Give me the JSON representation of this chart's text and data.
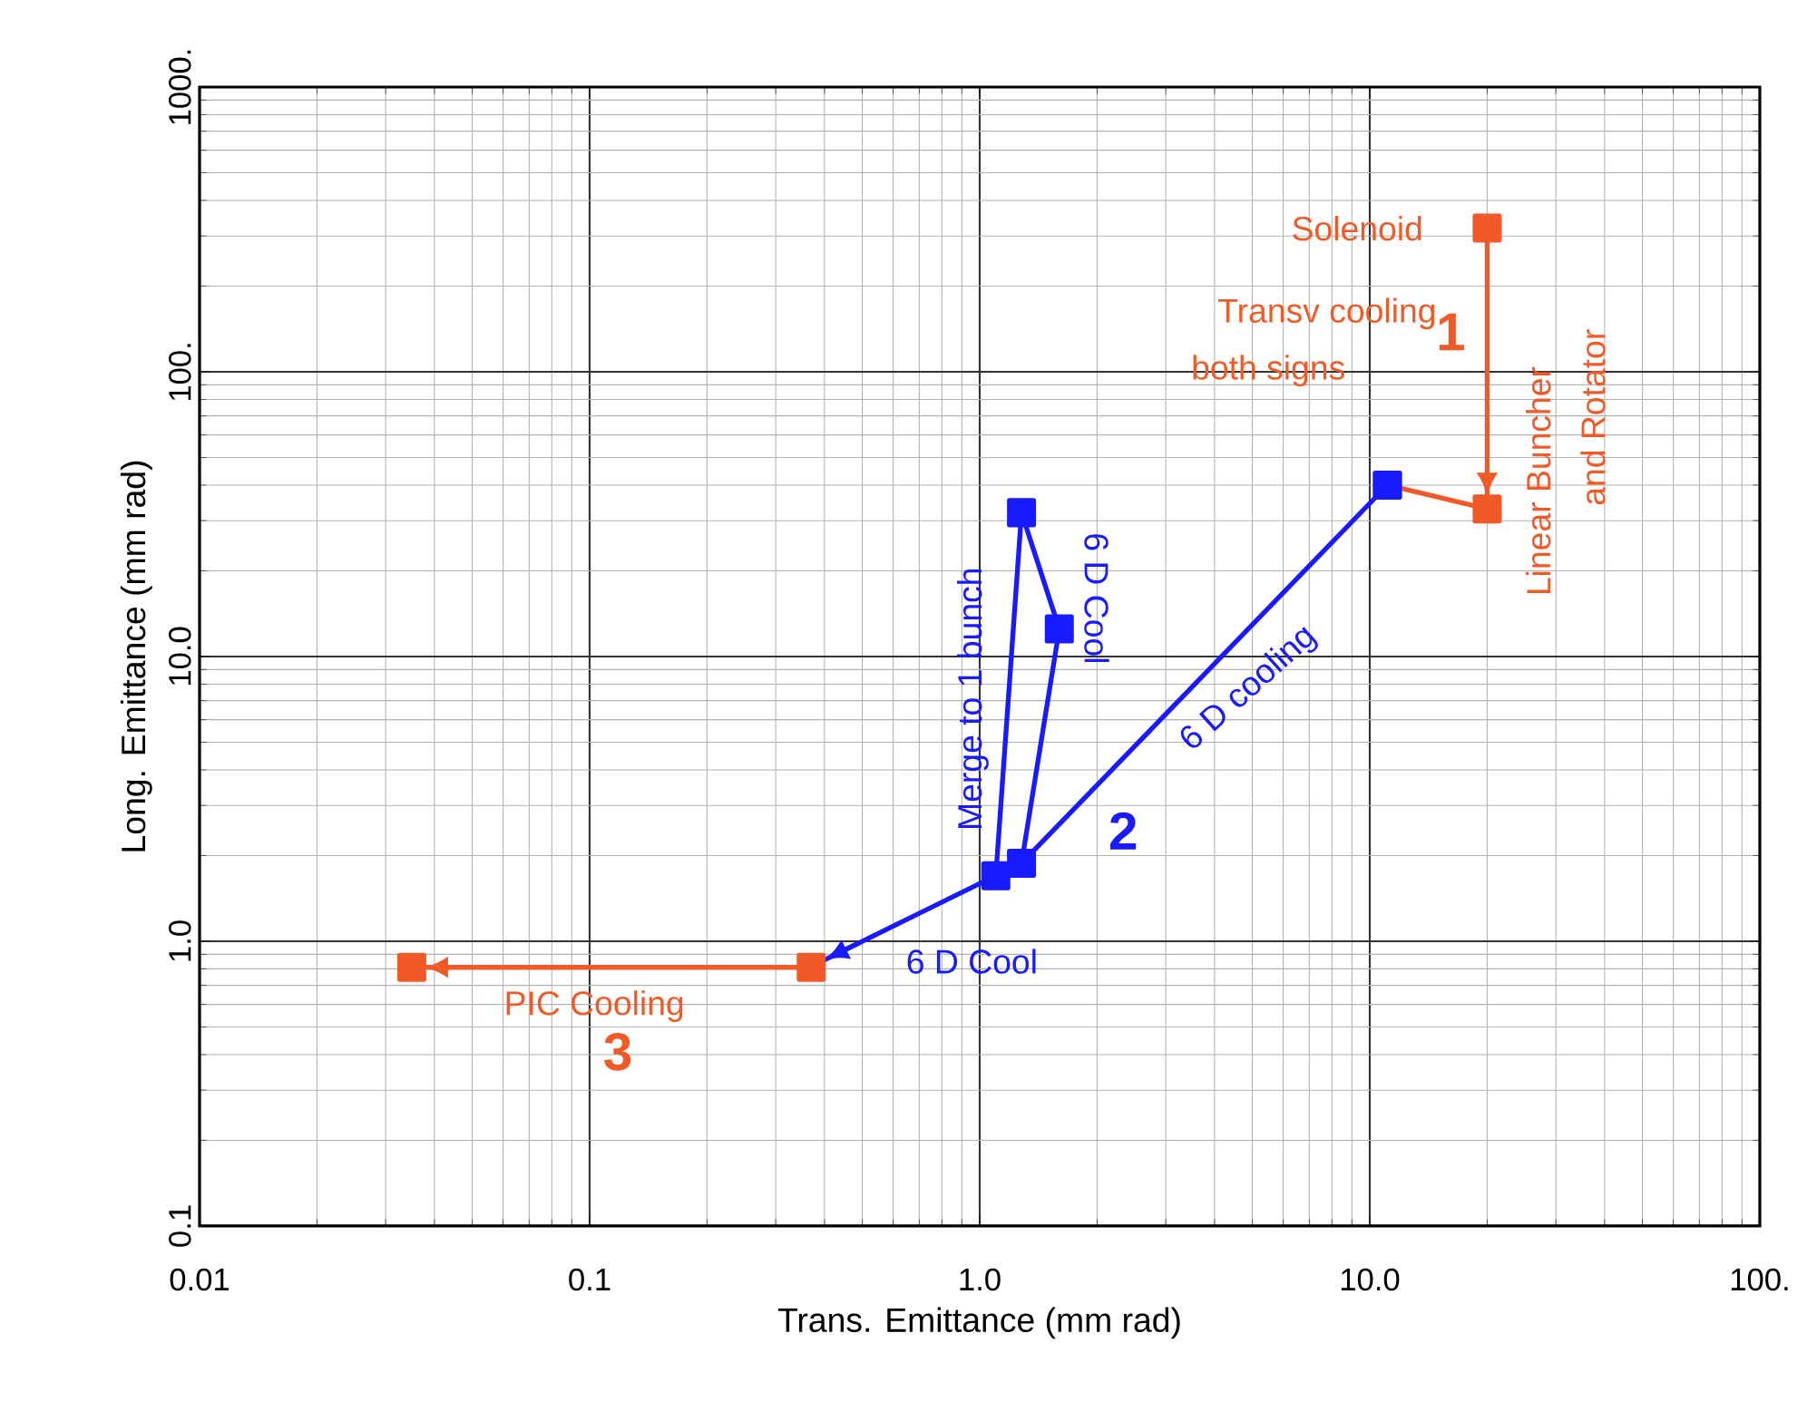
{
  "chart_data": {
    "type": "line",
    "xlabel": "Trans. Emittance (mm rad)",
    "ylabel": "Long. Emittance (mm rad)",
    "log": "xy",
    "grid": true,
    "marker": "square",
    "xlim": [
      0.01,
      100
    ],
    "ylim": [
      0.1,
      1000
    ],
    "xticks": [
      {
        "value": 0.01,
        "label": "0.01"
      },
      {
        "value": 0.1,
        "label": "0.1"
      },
      {
        "value": 1,
        "label": "1.0"
      },
      {
        "value": 10,
        "label": "10.0"
      },
      {
        "value": 100,
        "label": "100."
      }
    ],
    "yticks": [
      {
        "value": 0.1,
        "label": "0.1"
      },
      {
        "value": 1,
        "label": "1.0"
      },
      {
        "value": 10,
        "label": "10.0"
      },
      {
        "value": 100,
        "label": "100."
      },
      {
        "value": 1000,
        "label": "1000."
      }
    ],
    "series": [
      {
        "color": "#f05a28",
        "x": [
          20,
          20,
          11.1
        ],
        "values": [
          320,
          33,
          40
        ]
      },
      {
        "color": "#1a1aff",
        "x": [
          11.1,
          1.28,
          1.6,
          1.28,
          1.1
        ],
        "values": [
          40,
          1.88,
          12.5,
          32,
          1.7
        ]
      },
      {
        "color": "#1a1aff",
        "x": [
          1.1,
          0.4
        ],
        "values": [
          1.7,
          0.86
        ],
        "marker": "none"
      },
      {
        "color": "#f05a28",
        "x": [
          0.37,
          0.035
        ],
        "values": [
          0.81,
          0.81
        ]
      }
    ],
    "annotations": [
      "Solenoid",
      "Transv cooling",
      "both signs",
      "1",
      "Linear Buncher",
      "and Rotator",
      "Merge to 1 bunch",
      "6 D Cool",
      "6 D cooling",
      "2",
      "6 D Cool",
      "PIC Cooling",
      "3"
    ]
  }
}
